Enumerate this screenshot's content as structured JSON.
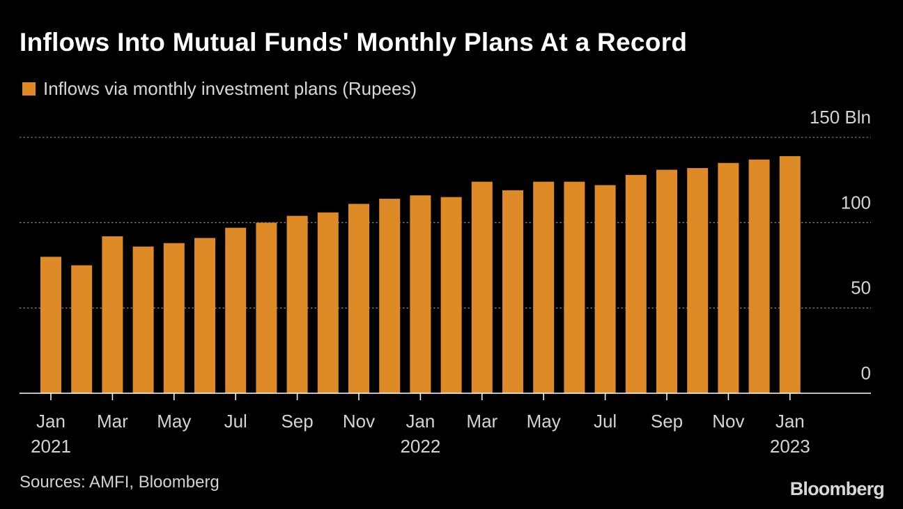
{
  "colors": {
    "background": "#000000",
    "bar": "#DD8A27",
    "grid": "#7a7a7a",
    "axis": "#ffffff"
  },
  "legend": {
    "label": "Inflows via monthly investment plans (Rupees)"
  },
  "footer": {
    "source": "Sources: AMFI, Bloomberg",
    "brand": "Bloomberg"
  },
  "chart_data": {
    "type": "bar",
    "title": "Inflows Into Mutual Funds' Monthly Plans At a Record",
    "series": [
      {
        "name": "Inflows via monthly investment plans (Rupees)",
        "values": [
          80,
          75,
          92,
          86,
          88,
          91,
          97,
          100,
          104,
          106,
          111,
          114,
          116,
          115,
          124,
          119,
          124,
          124,
          122,
          128,
          131,
          132,
          135,
          137,
          139
        ]
      }
    ],
    "categories": [
      "Jan 2021",
      "Feb 2021",
      "Mar 2021",
      "Apr 2021",
      "May 2021",
      "Jun 2021",
      "Jul 2021",
      "Aug 2021",
      "Sep 2021",
      "Oct 2021",
      "Nov 2021",
      "Dec 2021",
      "Jan 2022",
      "Feb 2022",
      "Mar 2022",
      "Apr 2022",
      "May 2022",
      "Jun 2022",
      "Jul 2022",
      "Aug 2022",
      "Sep 2022",
      "Oct 2022",
      "Nov 2022",
      "Dec 2022",
      "Jan 2023"
    ],
    "x_ticks": [
      {
        "index": 0,
        "label": "Jan",
        "year": "2021"
      },
      {
        "index": 2,
        "label": "Mar",
        "year": ""
      },
      {
        "index": 4,
        "label": "May",
        "year": ""
      },
      {
        "index": 6,
        "label": "Jul",
        "year": ""
      },
      {
        "index": 8,
        "label": "Sep",
        "year": ""
      },
      {
        "index": 10,
        "label": "Nov",
        "year": ""
      },
      {
        "index": 12,
        "label": "Jan",
        "year": "2022"
      },
      {
        "index": 14,
        "label": "Mar",
        "year": ""
      },
      {
        "index": 16,
        "label": "May",
        "year": ""
      },
      {
        "index": 18,
        "label": "Jul",
        "year": ""
      },
      {
        "index": 20,
        "label": "Sep",
        "year": ""
      },
      {
        "index": 22,
        "label": "Nov",
        "year": ""
      },
      {
        "index": 24,
        "label": "Jan",
        "year": "2023"
      }
    ],
    "y_ticks": [
      {
        "value": 0,
        "label": "0"
      },
      {
        "value": 50,
        "label": "50"
      },
      {
        "value": 100,
        "label": "100"
      },
      {
        "value": 150,
        "label": "150 Bln"
      }
    ],
    "xlabel": "",
    "ylabel": "",
    "ylim": [
      0,
      150
    ],
    "grid": true,
    "legend_position": "top-left"
  }
}
